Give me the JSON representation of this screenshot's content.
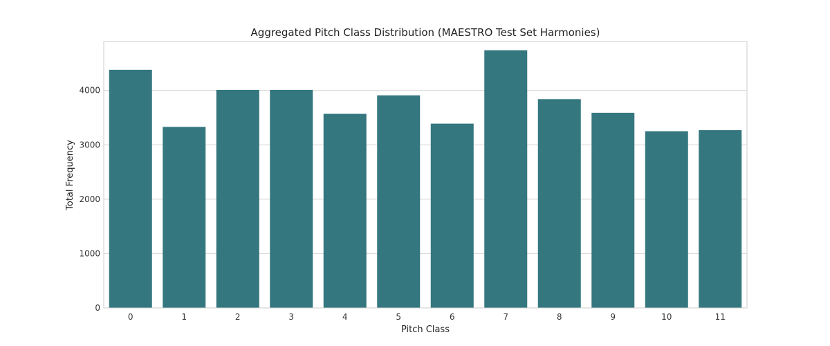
{
  "chart_data": {
    "type": "bar",
    "title": "Aggregated Pitch Class Distribution (MAESTRO Test Set Harmonies)",
    "xlabel": "Pitch Class",
    "ylabel": "Total Frequency",
    "categories": [
      "0",
      "1",
      "2",
      "3",
      "4",
      "5",
      "6",
      "7",
      "8",
      "9",
      "10",
      "11"
    ],
    "values": [
      4380,
      3330,
      4010,
      4010,
      3570,
      3910,
      3390,
      4740,
      3840,
      3590,
      3250,
      3270
    ],
    "ylim": [
      0,
      4900
    ],
    "yticks": [
      0,
      1000,
      2000,
      3000,
      4000
    ],
    "grid": true,
    "colors": {
      "bar": "#34777f",
      "grid": "#d4d4d4",
      "frame": "#cccccc"
    }
  }
}
